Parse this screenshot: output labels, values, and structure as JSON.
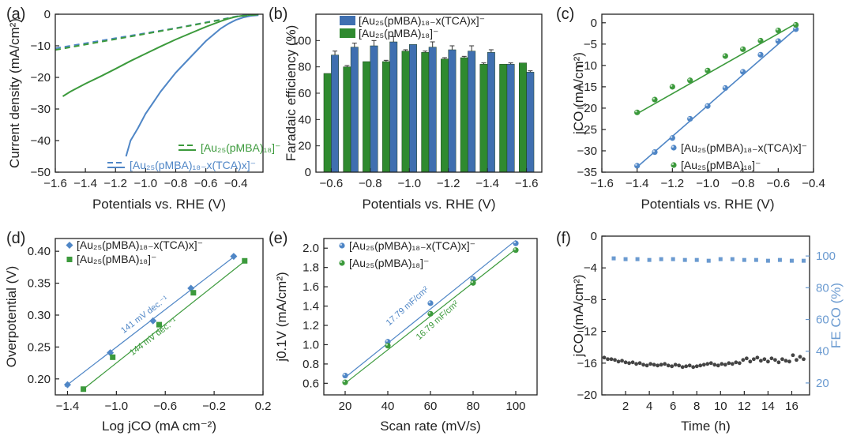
{
  "colors": {
    "blue": "#4f86c6",
    "green": "#3c9a3c",
    "axis": "#222222",
    "right_axis": "#6a9ad0",
    "bar_blue": "#3f6fb0",
    "bar_green": "#2f8a2f"
  },
  "chart_data": [
    {
      "id": "a",
      "panel_label": "(a)",
      "type": "line",
      "xlabel": "Potentials vs. RHE (V)",
      "ylabel": "Current density (mA/cm²)",
      "xlim": [
        -1.6,
        -0.22
      ],
      "ylim": [
        -50,
        0
      ],
      "xticks": [
        -1.6,
        -1.4,
        -1.2,
        -1.0,
        -0.8,
        -0.6,
        -0.4
      ],
      "xtick_labels": [
        "−1.6",
        "−1.4",
        "−1.2",
        "−1.0",
        "−0.8",
        "−0.6",
        "−0.4"
      ],
      "yticks": [
        0,
        -10,
        -20,
        -30,
        -40,
        -50
      ],
      "ytick_labels": [
        "0",
        "−10",
        "−20",
        "−30",
        "−40",
        "−50"
      ],
      "legend": [
        "[Au₂₅(pMBA)₁₈]⁻",
        "[Au₂₅(pMBA)₁₈₋x(TCA)x]⁻"
      ],
      "series": [
        {
          "name": "[Au₂₅(pMBA)₁₈₋x(TCA)x]⁻ (solid)",
          "color": "blue",
          "style": "solid",
          "x": [
            -1.13,
            -1.1,
            -1.05,
            -1.0,
            -0.95,
            -0.9,
            -0.85,
            -0.8,
            -0.75,
            -0.7,
            -0.65,
            -0.6,
            -0.55,
            -0.5,
            -0.45,
            -0.4,
            -0.35,
            -0.3,
            -0.25
          ],
          "y": [
            -45,
            -40,
            -36,
            -31.5,
            -28,
            -24.5,
            -21.5,
            -18.5,
            -16,
            -13.5,
            -11,
            -8.5,
            -6.5,
            -4.5,
            -3,
            -1.8,
            -1,
            -0.5,
            -0.3
          ]
        },
        {
          "name": "[Au₂₅(pMBA)₁₈]⁻ (solid)",
          "color": "green",
          "style": "solid",
          "x": [
            -1.55,
            -1.5,
            -1.4,
            -1.3,
            -1.2,
            -1.1,
            -1.0,
            -0.9,
            -0.8,
            -0.7,
            -0.6,
            -0.5,
            -0.45,
            -0.4,
            -0.35,
            -0.3,
            -0.25
          ],
          "y": [
            -26,
            -24.5,
            -22,
            -19.7,
            -17.3,
            -14.8,
            -12.5,
            -10.2,
            -8,
            -6,
            -4,
            -2.2,
            -1.4,
            -0.8,
            -0.4,
            -0.2,
            -0.1
          ]
        },
        {
          "name": "[Au₂₅(pMBA)₁₈₋x(TCA)x]⁻ (dashed)",
          "color": "blue",
          "style": "dashed",
          "x": [
            -1.6,
            -1.4,
            -1.2,
            -1.0,
            -0.8,
            -0.6,
            -0.5,
            -0.45,
            -0.4,
            -0.35,
            -0.3,
            -0.25
          ],
          "y": [
            -10.8,
            -9.2,
            -7.6,
            -6,
            -4.4,
            -2.6,
            -1.7,
            -1.2,
            -0.7,
            -0.4,
            -0.2,
            -0.1
          ]
        },
        {
          "name": "[Au₂₅(pMBA)₁₈]⁻ (dashed)",
          "color": "green",
          "style": "dashed",
          "x": [
            -1.6,
            -1.4,
            -1.2,
            -1.0,
            -0.8,
            -0.6,
            -0.5,
            -0.45,
            -0.4,
            -0.35,
            -0.3,
            -0.25
          ],
          "y": [
            -11.3,
            -9.6,
            -7.9,
            -6.2,
            -4.5,
            -2.7,
            -1.8,
            -1.3,
            -0.8,
            -0.5,
            -0.3,
            -0.1
          ]
        }
      ]
    },
    {
      "id": "b",
      "panel_label": "(b)",
      "type": "bar",
      "xlabel": "Potentials vs. RHE (V)",
      "ylabel": "Faradaic efficiency (%)",
      "ylim": [
        0,
        120
      ],
      "yticks": [
        0,
        20,
        40,
        60,
        80,
        100
      ],
      "categories": [
        -0.6,
        -0.7,
        -0.8,
        -0.9,
        -1.0,
        -1.1,
        -1.2,
        -1.3,
        -1.4,
        -1.5,
        -1.6
      ],
      "xtick_labels": [
        "−0.6",
        "−0.8",
        "−1.0",
        "−1.2",
        "−1.4",
        "−1.6"
      ],
      "xtick_values": [
        -0.6,
        -0.8,
        -1.0,
        -1.2,
        -1.4,
        -1.6
      ],
      "legend": [
        "[Au₂₅(pMBA)₁₈₋x(TCA)x]⁻",
        "[Au₂₅(pMBA)₁₈]⁻"
      ],
      "series": [
        {
          "name": "[Au₂₅(pMBA)₁₈]⁻",
          "color": "bar_green",
          "values": [
            75,
            80,
            84,
            84,
            92,
            91,
            86,
            87,
            82,
            82,
            83
          ],
          "errors": [
            0,
            1,
            0,
            1,
            1,
            1,
            1,
            1,
            1,
            0,
            0
          ]
        },
        {
          "name": "[Au₂₅(pMBA)₁₈₋x(TCA)x]⁻",
          "color": "bar_blue",
          "values": [
            89,
            95,
            96,
            99,
            97,
            95,
            93,
            92,
            91,
            82,
            76
          ],
          "errors": [
            3,
            3,
            4,
            4,
            0,
            4,
            3,
            4,
            2,
            1,
            1
          ]
        }
      ]
    },
    {
      "id": "c",
      "panel_label": "(c)",
      "type": "scatter",
      "xlabel": "Potentials vs. RHE (V)",
      "ylabel": "jCO (mA/cm²)",
      "xlim": [
        -1.6,
        -0.4
      ],
      "ylim": [
        -35,
        2
      ],
      "xticks": [
        -1.6,
        -1.4,
        -1.2,
        -1.0,
        -0.8,
        -0.6,
        -0.4
      ],
      "xtick_labels": [
        "−1.6",
        "−1.4",
        "−1.2",
        "−1.0",
        "−0.8",
        "−0.6",
        "−0.4"
      ],
      "yticks": [
        0,
        -5,
        -10,
        -15,
        -20,
        -25,
        -30,
        -35
      ],
      "ytick_labels": [
        "0",
        "−5",
        "−10",
        "−15",
        "−20",
        "−25",
        "−30",
        "−35"
      ],
      "legend": [
        "[Au₂₅(pMBA)₁₈₋x(TCA)x]⁻",
        "[Au₂₅(pMBA)₁₈]⁻"
      ],
      "series": [
        {
          "name": "[Au₂₅(pMBA)₁₈₋x(TCA)x]⁻",
          "color": "blue",
          "x": [
            -1.4,
            -1.3,
            -1.2,
            -1.1,
            -1.0,
            -0.9,
            -0.8,
            -0.7,
            -0.6,
            -0.5
          ],
          "y": [
            -33.5,
            -30.3,
            -27,
            -22.5,
            -19.5,
            -15.3,
            -11.5,
            -7.5,
            -4.3,
            -1.5
          ],
          "fit": [
            [
              -1.4,
              -33.8
            ],
            [
              -0.5,
              -1.4
            ]
          ]
        },
        {
          "name": "[Au₂₅(pMBA)₁₈]⁻",
          "color": "green",
          "x": [
            -1.4,
            -1.3,
            -1.2,
            -1.1,
            -1.0,
            -0.9,
            -0.8,
            -0.7,
            -0.6,
            -0.5
          ],
          "y": [
            -21,
            -18,
            -15,
            -13.5,
            -11.2,
            -7.8,
            -6.2,
            -4.2,
            -1.8,
            -0.5
          ],
          "fit": [
            [
              -1.4,
              -21.3
            ],
            [
              -0.5,
              -0.2
            ]
          ]
        }
      ]
    },
    {
      "id": "d",
      "panel_label": "(d)",
      "type": "scatter",
      "xlabel": "Log jCO (mA cm⁻²)",
      "ylabel": "Overpotential (V)",
      "xlim": [
        -1.5,
        0.2
      ],
      "ylim": [
        0.175,
        0.42
      ],
      "xticks": [
        -1.4,
        -1.0,
        -0.6,
        -0.2,
        0.2
      ],
      "xtick_labels": [
        "−1.4",
        "−1.0",
        "−0.6",
        "−0.2",
        "0.2"
      ],
      "yticks": [
        0.2,
        0.25,
        0.3,
        0.35,
        0.4
      ],
      "ytick_labels": [
        "0.20",
        "0.25",
        "0.30",
        "0.35",
        "0.40"
      ],
      "legend": [
        "[Au₂₅(pMBA)₁₈₋x(TCA)x]⁻",
        "[Au₂₅(pMBA)₁₈]⁻"
      ],
      "annotations": [
        "141 mV dec.⁻¹",
        "144 mV dec.⁻¹"
      ],
      "series": [
        {
          "name": "[Au₂₅(pMBA)₁₈₋x(TCA)x]⁻",
          "color": "blue",
          "marker": "diamond",
          "x": [
            -1.4,
            -1.05,
            -0.7,
            -0.39,
            -0.04
          ],
          "y": [
            0.191,
            0.241,
            0.291,
            0.342,
            0.392
          ],
          "fit": [
            [
              -1.42,
              0.188
            ],
            [
              -0.02,
              0.394
            ]
          ]
        },
        {
          "name": "[Au₂₅(pMBA)₁₈]⁻",
          "color": "green",
          "marker": "square",
          "x": [
            -1.27,
            -1.03,
            -0.65,
            -0.37,
            0.05
          ],
          "y": [
            0.184,
            0.234,
            0.285,
            0.335,
            0.385
          ],
          "fit": [
            [
              -1.27,
              0.184
            ],
            [
              0.06,
              0.386
            ]
          ]
        }
      ]
    },
    {
      "id": "e",
      "panel_label": "(e)",
      "type": "scatter",
      "xlabel": "Scan rate (mV/s)",
      "ylabel": "j0.1V (mA/cm²)",
      "xlim": [
        10,
        110
      ],
      "ylim": [
        0.48,
        2.1
      ],
      "xticks": [
        20,
        40,
        60,
        80,
        100
      ],
      "xtick_labels": [
        "20",
        "40",
        "60",
        "80",
        "100"
      ],
      "yticks": [
        0.6,
        0.8,
        1.0,
        1.2,
        1.4,
        1.6,
        1.8,
        2.0
      ],
      "ytick_labels": [
        "0.6",
        "0.8",
        "1.0",
        "1.2",
        "1.4",
        "1.6",
        "1.8",
        "2.0"
      ],
      "legend": [
        "[Au₂₅(pMBA)₁₈₋x(TCA)x]⁻",
        "[Au₂₅(pMBA)₁₈]⁻"
      ],
      "annotations": [
        "17.79 mF/cm²",
        "16.79 mF/cm²"
      ],
      "series": [
        {
          "name": "[Au₂₅(pMBA)₁₈₋x(TCA)x]⁻",
          "color": "blue",
          "x": [
            20,
            40,
            60,
            80,
            100
          ],
          "y": [
            0.68,
            1.03,
            1.43,
            1.68,
            2.05
          ],
          "fit": [
            [
              20,
              0.66
            ],
            [
              100,
              2.08
            ]
          ]
        },
        {
          "name": "[Au₂₅(pMBA)₁₈]⁻",
          "color": "green",
          "x": [
            20,
            40,
            60,
            80,
            100
          ],
          "y": [
            0.61,
            0.99,
            1.32,
            1.64,
            1.98
          ],
          "fit": [
            [
              20,
              0.6
            ],
            [
              100,
              1.99
            ]
          ]
        }
      ]
    },
    {
      "id": "f",
      "panel_label": "(f)",
      "type": "scatter",
      "xlabel": "Time (h)",
      "ylabel": "jCO (mA/cm²)",
      "ylabel_right": "FE CO (%)",
      "xlim": [
        0,
        17.5
      ],
      "ylim": [
        -20,
        0
      ],
      "ylim_right": [
        12.5,
        112.5
      ],
      "xticks": [
        2,
        4,
        6,
        8,
        10,
        12,
        14,
        16
      ],
      "xtick_labels": [
        "2",
        "4",
        "6",
        "8",
        "10",
        "12",
        "14",
        "16"
      ],
      "yticks": [
        0,
        -4,
        -8,
        -12,
        -16,
        -20
      ],
      "ytick_labels": [
        "0",
        "−4",
        "−8",
        "−12",
        "−16",
        "−20"
      ],
      "yticks_right": [
        20,
        40,
        60,
        80,
        100
      ],
      "ytick_labels_right": [
        "20",
        "40",
        "60",
        "80",
        "100"
      ],
      "series": [
        {
          "name": "jCO",
          "color": "#444444",
          "axis": "left",
          "x": [
            0.2,
            0.5,
            0.8,
            1.1,
            1.4,
            1.7,
            2.0,
            2.3,
            2.6,
            2.9,
            3.2,
            3.5,
            3.8,
            4.1,
            4.4,
            4.7,
            5.0,
            5.3,
            5.6,
            5.9,
            6.2,
            6.5,
            6.8,
            7.1,
            7.4,
            7.7,
            8.0,
            8.3,
            8.6,
            8.9,
            9.2,
            9.5,
            9.8,
            10.1,
            10.4,
            10.7,
            11.0,
            11.3,
            11.6,
            11.9,
            12.2,
            12.5,
            12.8,
            13.1,
            13.4,
            13.7,
            14.0,
            14.3,
            14.6,
            14.9,
            15.2,
            15.5,
            15.8,
            16.1,
            16.4,
            16.7,
            17.0
          ],
          "y": [
            -15.3,
            -15.5,
            -15.5,
            -15.6,
            -15.8,
            -15.7,
            -15.9,
            -16.0,
            -15.9,
            -16.1,
            -16.0,
            -16.2,
            -16.3,
            -16.1,
            -16.2,
            -16.3,
            -16.2,
            -16.1,
            -16.3,
            -16.4,
            -16.2,
            -16.3,
            -16.5,
            -16.4,
            -16.3,
            -16.5,
            -16.4,
            -16.3,
            -16.2,
            -16.1,
            -16.0,
            -16.2,
            -16.3,
            -16.1,
            -16.2,
            -16.0,
            -16.1,
            -15.9,
            -16.0,
            -15.6,
            -15.4,
            -15.8,
            -15.5,
            -15.3,
            -15.7,
            -15.5,
            -15.8,
            -15.4,
            -15.6,
            -15.9,
            -15.5,
            -15.7,
            -15.8,
            -15.0,
            -15.6,
            -15.2,
            -15.5
          ]
        },
        {
          "name": "FE CO",
          "color": "#6a9ad0",
          "axis": "right",
          "x": [
            1,
            2,
            3,
            4,
            5,
            6,
            7,
            8,
            9,
            10,
            11,
            12,
            13,
            14,
            15,
            16,
            17
          ],
          "y": [
            98.5,
            98,
            98,
            97.5,
            98,
            98,
            97.5,
            97.5,
            97,
            98,
            98,
            97.5,
            97.5,
            97,
            97.5,
            97,
            97
          ]
        }
      ]
    }
  ]
}
